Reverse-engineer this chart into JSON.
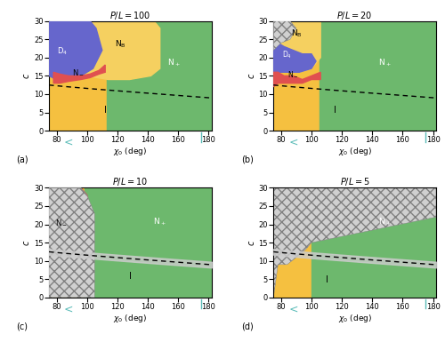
{
  "panels": [
    {
      "pl": 100,
      "label": "(a)",
      "row": 0,
      "col": 0
    },
    {
      "pl": 20,
      "label": "(b)",
      "row": 0,
      "col": 1
    },
    {
      "pl": 10,
      "label": "(c)",
      "row": 1,
      "col": 0
    },
    {
      "pl": 5,
      "label": "(d)",
      "row": 1,
      "col": 1
    }
  ],
  "xlim": [
    75,
    182
  ],
  "ylim": [
    0,
    30
  ],
  "xticks": [
    80,
    100,
    120,
    140,
    160,
    180
  ],
  "yticks": [
    0,
    5,
    10,
    15,
    20,
    25,
    30
  ],
  "col_I": "#f5c040",
  "col_Np": "#6db86d",
  "col_Nm": "#e05050",
  "col_D4": "#6666cc",
  "col_NB": "#f5d060",
  "col_cross": "#d0d0d0",
  "col_teal": "#5bbcb8",
  "col_gray": "#cccccc"
}
